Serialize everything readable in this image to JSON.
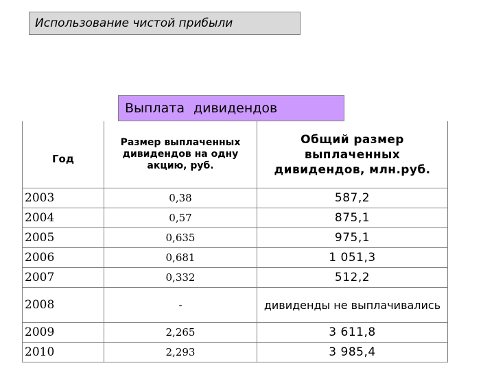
{
  "title": "Использование чистой прибыли",
  "subtitle": "Выплата  дивидендов",
  "table": {
    "headers": {
      "year": "Год",
      "per_share": "Размер выплаченных дивидендов на одну акцию, руб.",
      "total": "Общий размер выплаченных дивидендов, млн.руб."
    },
    "rows": [
      {
        "year": "2003",
        "per_share": "0,38",
        "total": "587,2"
      },
      {
        "year": "2004",
        "per_share": "0,57",
        "total": "875,1"
      },
      {
        "year": "2005",
        "per_share": "0,635",
        "total": "975,1"
      },
      {
        "year": "2006",
        "per_share": "0,681",
        "total": "1 051,3"
      },
      {
        "year": "2007",
        "per_share": "0,332",
        "total": "512,2"
      },
      {
        "year": "2008",
        "per_share": "-",
        "total": "дивиденды не выплачивались"
      },
      {
        "year": "2009",
        "per_share": "2,265",
        "total": "3 611,8"
      },
      {
        "year": "2010",
        "per_share": "2,293",
        "total": "3 985,4"
      }
    ]
  },
  "colors": {
    "title_bg": "#d9d9d9",
    "subtitle_bg": "#cc99ff",
    "border": "#808080"
  }
}
